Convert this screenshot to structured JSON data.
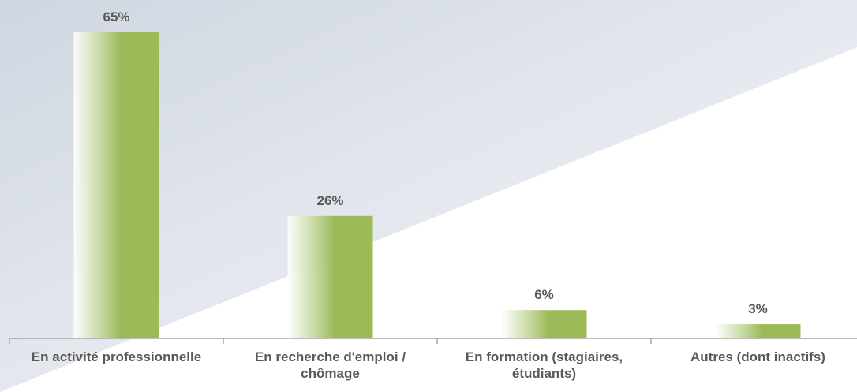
{
  "chart_data": {
    "type": "bar",
    "categories": [
      "En activité professionnelle",
      "En recherche d'emploi / chômage",
      "En formation (stagiaires, étudiants)",
      "Autres (dont inactifs)"
    ],
    "values": [
      65,
      26,
      6,
      3
    ],
    "value_labels": [
      "65%",
      "26%",
      "6%",
      "3%"
    ],
    "color": "#9bbb59"
  }
}
